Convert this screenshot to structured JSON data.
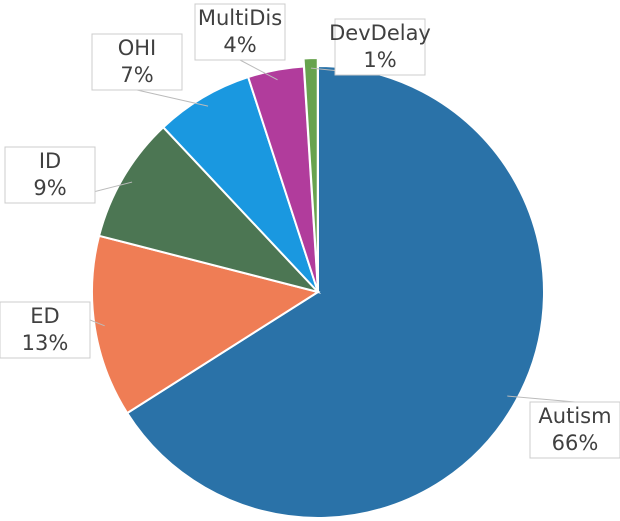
{
  "chart_data": {
    "type": "pie",
    "categories": [
      "Autism",
      "ED",
      "ID",
      "OHI",
      "MultiDis",
      "DevDelay"
    ],
    "values": [
      66,
      13,
      9,
      7,
      4,
      1
    ],
    "value_labels": [
      "66%",
      "13%",
      "9%",
      "7%",
      "4%",
      "1%"
    ],
    "colors": [
      "#2a72a8",
      "#ef7d55",
      "#4c7653",
      "#1a98e0",
      "#b13c9c",
      "#68a34e"
    ]
  }
}
